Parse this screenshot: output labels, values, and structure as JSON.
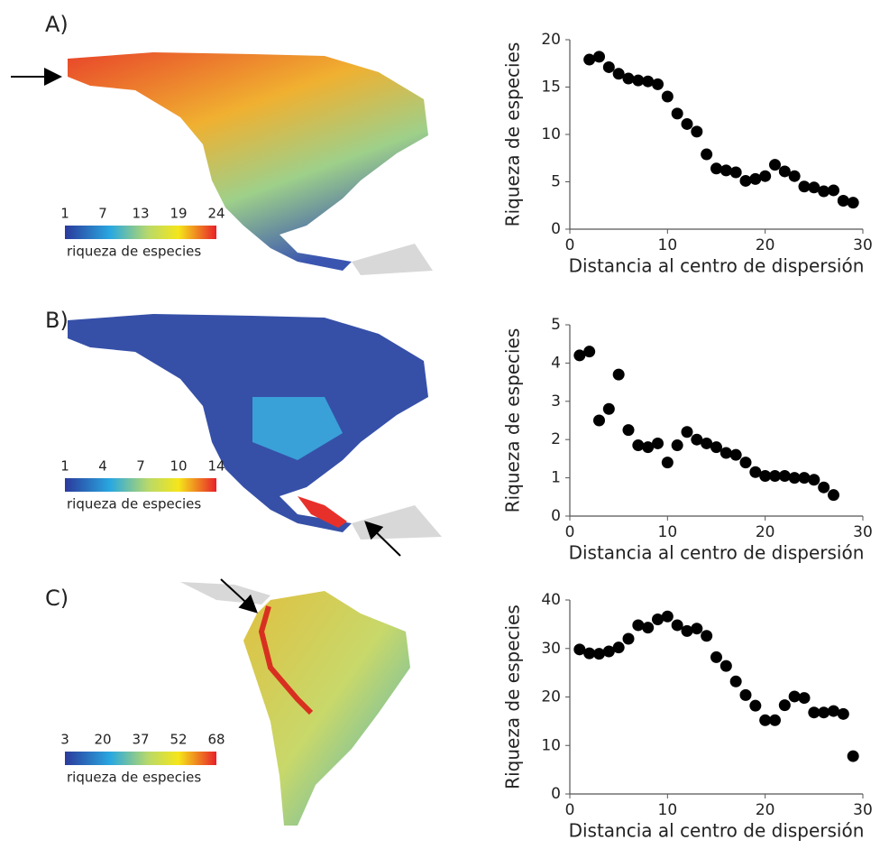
{
  "panels": [
    {
      "label": "A)",
      "colorbar": {
        "ticks": [
          1,
          7,
          13,
          19,
          24
        ],
        "label": "riqueza de especies"
      }
    },
    {
      "label": "B)",
      "colorbar": {
        "ticks": [
          1,
          4,
          7,
          10,
          14
        ],
        "label": "riqueza de especies"
      }
    },
    {
      "label": "C)",
      "colorbar": {
        "ticks": [
          3,
          20,
          37,
          52,
          68
        ],
        "label": "riqueza de especies"
      }
    }
  ],
  "chart_data": [
    {
      "type": "scatter",
      "color": "#000000",
      "x": [
        2,
        3,
        4,
        5,
        6,
        7,
        8,
        9,
        10,
        11,
        12,
        13,
        14,
        15,
        16,
        17,
        18,
        19,
        20,
        21,
        22,
        23,
        24,
        25,
        26,
        27,
        28,
        29
      ],
      "values": [
        17.9,
        18.2,
        17.1,
        16.4,
        15.9,
        15.7,
        15.6,
        15.3,
        14.0,
        12.2,
        11.1,
        10.3,
        7.9,
        6.4,
        6.2,
        6.0,
        5.1,
        5.3,
        5.6,
        6.8,
        6.1,
        5.6,
        4.5,
        4.4,
        4.0,
        4.1,
        3.0,
        2.8
      ],
      "xlim": [
        0,
        30
      ],
      "ylim": [
        0,
        20
      ],
      "xticks": [
        0,
        10,
        20,
        30
      ],
      "yticks": [
        0,
        5,
        10,
        15,
        20
      ],
      "xlabel": "Distancia al centro de dispersión",
      "ylabel": "Riqueza de especies"
    },
    {
      "type": "scatter",
      "color": "#000000",
      "x": [
        1,
        2,
        3,
        4,
        5,
        6,
        7,
        8,
        9,
        10,
        11,
        12,
        13,
        14,
        15,
        16,
        17,
        18,
        19,
        20,
        21,
        22,
        23,
        24,
        25,
        26,
        27
      ],
      "values": [
        4.2,
        4.3,
        2.5,
        2.8,
        3.7,
        2.25,
        1.85,
        1.8,
        1.9,
        1.4,
        1.85,
        2.2,
        2.0,
        1.9,
        1.8,
        1.65,
        1.6,
        1.4,
        1.15,
        1.05,
        1.05,
        1.05,
        1.0,
        1.0,
        0.95,
        0.75,
        0.55
      ],
      "xlim": [
        0,
        30
      ],
      "ylim": [
        0,
        5
      ],
      "xticks": [
        0,
        10,
        20,
        30
      ],
      "yticks": [
        0,
        1,
        2,
        3,
        4,
        5
      ],
      "xlabel": "Distancia al centro de dispersión",
      "ylabel": "Riqueza de especies"
    },
    {
      "type": "scatter",
      "color": "#000000",
      "x": [
        1,
        2,
        3,
        4,
        5,
        6,
        7,
        8,
        9,
        10,
        11,
        12,
        13,
        14,
        15,
        16,
        17,
        18,
        19,
        20,
        21,
        22,
        23,
        24,
        25,
        26,
        27,
        28,
        29
      ],
      "values": [
        29.8,
        29.0,
        28.9,
        29.4,
        30.2,
        32.0,
        34.8,
        34.3,
        36.0,
        36.6,
        34.8,
        33.6,
        34.1,
        32.6,
        28.2,
        26.4,
        23.2,
        20.4,
        18.2,
        15.2,
        15.2,
        18.3,
        20.1,
        19.8,
        16.8,
        16.8,
        17.1,
        16.5,
        7.8
      ],
      "xlim": [
        0,
        30
      ],
      "ylim": [
        0,
        40
      ],
      "xticks": [
        0,
        10,
        20,
        30
      ],
      "yticks": [
        0,
        10,
        20,
        30,
        40
      ],
      "xlabel": "Distancia al centro de dispersión",
      "ylabel": "Riqueza de especies"
    }
  ]
}
